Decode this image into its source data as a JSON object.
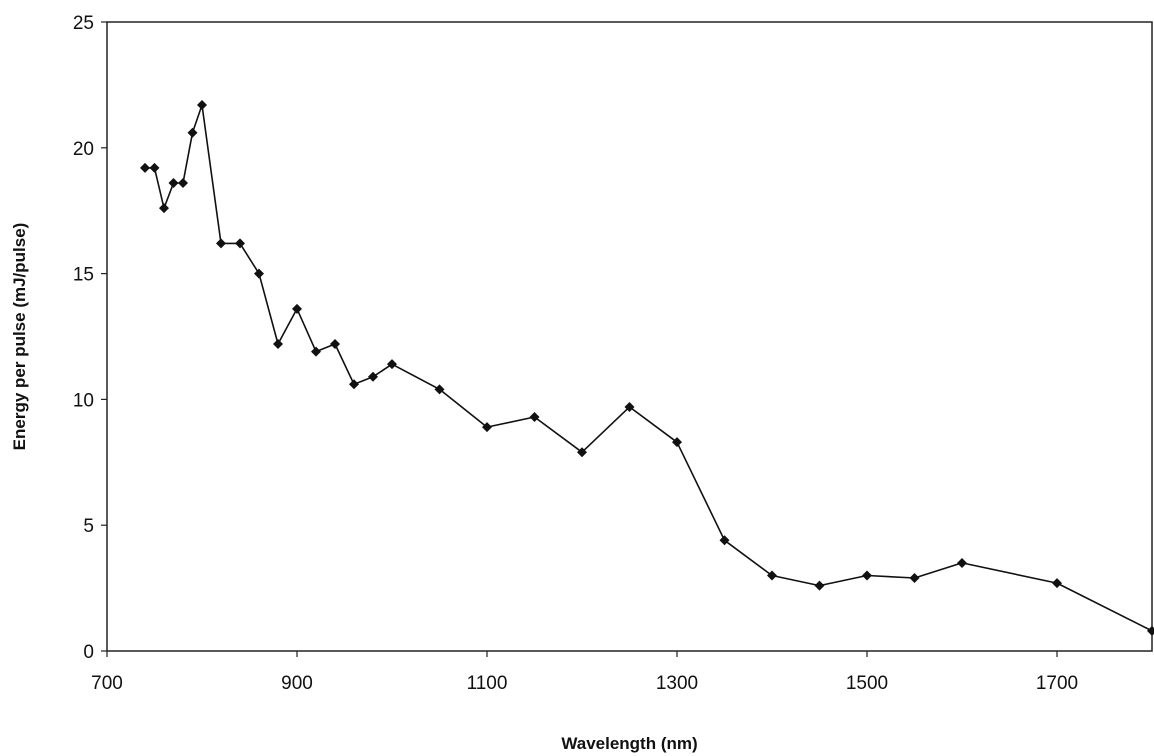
{
  "chart_data": {
    "type": "line",
    "title": "",
    "xlabel": "Wavelength (nm)",
    "ylabel": "Energy per pulse (mJ/pulse)",
    "xlim": [
      700,
      1800
    ],
    "ylim": [
      0,
      25
    ],
    "xticks": [
      700,
      900,
      1100,
      1300,
      1500,
      1700
    ],
    "yticks": [
      0,
      5,
      10,
      15,
      20,
      25
    ],
    "grid": false,
    "legend": "none",
    "colors": {
      "line": "#111111",
      "marker": "#111111",
      "axis": "#222222"
    },
    "marker": "diamond",
    "series": [
      {
        "x": [
          740,
          750,
          760,
          770,
          780,
          790,
          800,
          820,
          840,
          860,
          880,
          900,
          920,
          940,
          960,
          980,
          1000,
          1050,
          1100,
          1150,
          1200,
          1250,
          1300,
          1350,
          1400,
          1450,
          1500,
          1550,
          1600,
          1700,
          1800
        ],
        "y": [
          19.2,
          19.2,
          17.6,
          18.6,
          18.6,
          20.6,
          21.7,
          16.2,
          16.2,
          15.0,
          12.2,
          13.6,
          11.9,
          12.2,
          10.6,
          10.9,
          11.4,
          10.4,
          8.9,
          9.3,
          7.9,
          9.7,
          8.3,
          4.4,
          3.0,
          2.6,
          3.0,
          2.9,
          3.5,
          2.7,
          0.8
        ]
      }
    ]
  }
}
